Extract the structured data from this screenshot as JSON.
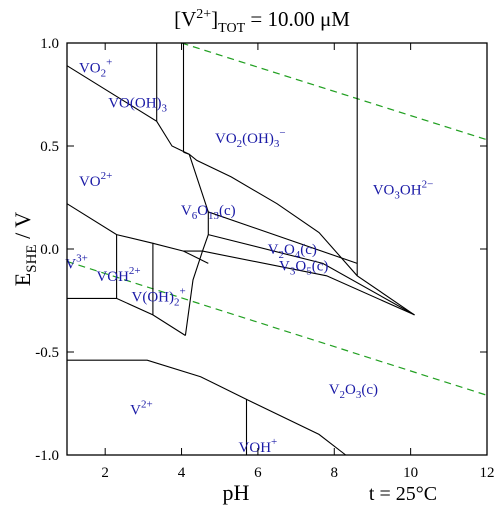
{
  "chart_data": {
    "type": "line",
    "title": "[V²⁺]TOT = 10.00 μM",
    "title_parts": {
      "prefix": "[V",
      "sup": "2+",
      "mid": "]",
      "sub": "TOT",
      "suffix": " = 10.00 μM"
    },
    "xlabel": "pH",
    "ylabel": "ESHE / V",
    "ylabel_parts": {
      "main": "E",
      "sub": "SHE",
      "rest": " / V"
    },
    "annotation": "t = 25°C",
    "xlim": [
      1,
      12
    ],
    "ylim": [
      -1.0,
      1.0
    ],
    "x_ticks": [
      2,
      4,
      6,
      8,
      10,
      12
    ],
    "x_tick_labels": [
      "2",
      "4",
      "6",
      "8",
      "10",
      "12"
    ],
    "y_ticks": [
      1.0,
      0.5,
      0.0,
      -0.5,
      -1.0
    ],
    "y_tick_labels": [
      "1.0",
      "0.5",
      "0.0",
      "-0.5",
      "-1.0"
    ],
    "grid": false,
    "colors": {
      "boundary": "#000000",
      "water_lines": "#22a022",
      "labels": "#1a1aa6"
    },
    "water_lines": [
      {
        "points": [
          [
            4,
            1.0
          ],
          [
            12,
            0.53
          ]
        ]
      },
      {
        "points": [
          [
            1,
            -0.06
          ],
          [
            12,
            -0.71
          ]
        ]
      }
    ],
    "boundaries": [
      [
        [
          1,
          0.89
        ],
        [
          3.35,
          0.62
        ],
        [
          3.75,
          0.5
        ],
        [
          4.2,
          0.46
        ]
      ],
      [
        [
          3.35,
          1.0
        ],
        [
          3.35,
          0.62
        ]
      ],
      [
        [
          4.05,
          1.0
        ],
        [
          4.05,
          0.47
        ]
      ],
      [
        [
          8.6,
          1.0
        ],
        [
          8.6,
          -0.13
        ]
      ],
      [
        [
          4.05,
          0.47
        ],
        [
          4.2,
          0.46
        ],
        [
          4.4,
          0.43
        ],
        [
          5.3,
          0.35
        ],
        [
          6.5,
          0.22
        ],
        [
          7.6,
          0.08
        ],
        [
          8.6,
          -0.13
        ],
        [
          10.1,
          -0.32
        ]
      ],
      [
        [
          1,
          0.22
        ],
        [
          2.3,
          0.07
        ],
        [
          3.2,
          0.03
        ],
        [
          4.05,
          -0.01
        ],
        [
          4.7,
          -0.07
        ]
      ],
      [
        [
          4.7,
          0.18
        ],
        [
          4.7,
          0.07
        ],
        [
          4.55,
          -0.01
        ]
      ],
      [
        [
          4.2,
          0.46
        ],
        [
          4.7,
          0.18
        ],
        [
          8.6,
          -0.07
        ]
      ],
      [
        [
          4.7,
          0.07
        ],
        [
          7.7,
          -0.07
        ],
        [
          10.1,
          -0.32
        ]
      ],
      [
        [
          4.55,
          -0.01
        ],
        [
          7.8,
          -0.13
        ],
        [
          10.1,
          -0.32
        ]
      ],
      [
        [
          2.3,
          0.07
        ],
        [
          2.3,
          -0.24
        ]
      ],
      [
        [
          1,
          -0.24
        ],
        [
          2.3,
          -0.24
        ],
        [
          3.25,
          -0.32
        ],
        [
          4.1,
          -0.42
        ]
      ],
      [
        [
          3.25,
          0.03
        ],
        [
          3.25,
          -0.32
        ]
      ],
      [
        [
          4.05,
          -0.01
        ],
        [
          4.55,
          -0.01
        ],
        [
          4.3,
          -0.15
        ],
        [
          4.1,
          -0.42
        ]
      ],
      [
        [
          1,
          -0.54
        ],
        [
          3.1,
          -0.54
        ],
        [
          4.5,
          -0.62
        ],
        [
          5.7,
          -0.73
        ],
        [
          7.6,
          -0.9
        ],
        [
          8.3,
          -1.0
        ]
      ],
      [
        [
          5.7,
          -0.73
        ],
        [
          5.7,
          -1.0
        ]
      ]
    ],
    "regions": [
      {
        "base": "VO",
        "sub": "2",
        "sup": "+",
        "x": 1.75,
        "y": 0.88
      },
      {
        "base": "VO(OH)",
        "sub": "3",
        "sup": "",
        "x": 2.85,
        "y": 0.71
      },
      {
        "base": "VO",
        "sub": "2",
        "sup": "",
        "tail": "(OH)",
        "sub2": "3",
        "sup2": "−",
        "x": 5.8,
        "y": 0.54
      },
      {
        "base": "VO",
        "sub": "",
        "sup": "2+",
        "x": 1.75,
        "y": 0.33
      },
      {
        "base": "V",
        "sub": "6",
        "sup": "",
        "tail": "O",
        "sub2": "13",
        "sup2": "",
        "tail2": "(c)",
        "x": 4.7,
        "y": 0.19
      },
      {
        "base": "VO",
        "sub": "3",
        "sup": "",
        "tail": "OH",
        "sub2": "",
        "sup2": "2−",
        "x": 9.8,
        "y": 0.29
      },
      {
        "base": "V",
        "sub": "",
        "sup": "3+",
        "x": 1.25,
        "y": -0.07
      },
      {
        "base": "VOH",
        "sub": "",
        "sup": "2+",
        "x": 2.35,
        "y": -0.13
      },
      {
        "base": "V(OH)",
        "sub": "2",
        "sup": "+",
        "x": 3.4,
        "y": -0.23
      },
      {
        "base": "V",
        "sub": "2",
        "sup": "",
        "tail": "O",
        "sub2": "4",
        "sup2": "",
        "tail2": "(c)",
        "x": 6.9,
        "y": 0.0
      },
      {
        "base": "V",
        "sub": "3",
        "sup": "",
        "tail": "O",
        "sub2": "5",
        "sup2": "",
        "tail2": "(c)",
        "x": 7.2,
        "y": -0.08
      },
      {
        "base": "V",
        "sub": "2",
        "sup": "",
        "tail": "O",
        "sub2": "3",
        "sup2": "",
        "tail2": "(c)",
        "x": 8.5,
        "y": -0.68
      },
      {
        "base": "V",
        "sub": "",
        "sup": "2+",
        "x": 2.95,
        "y": -0.78
      },
      {
        "base": "VOH",
        "sub": "",
        "sup": "+",
        "x": 6.0,
        "y": -0.96
      }
    ]
  }
}
